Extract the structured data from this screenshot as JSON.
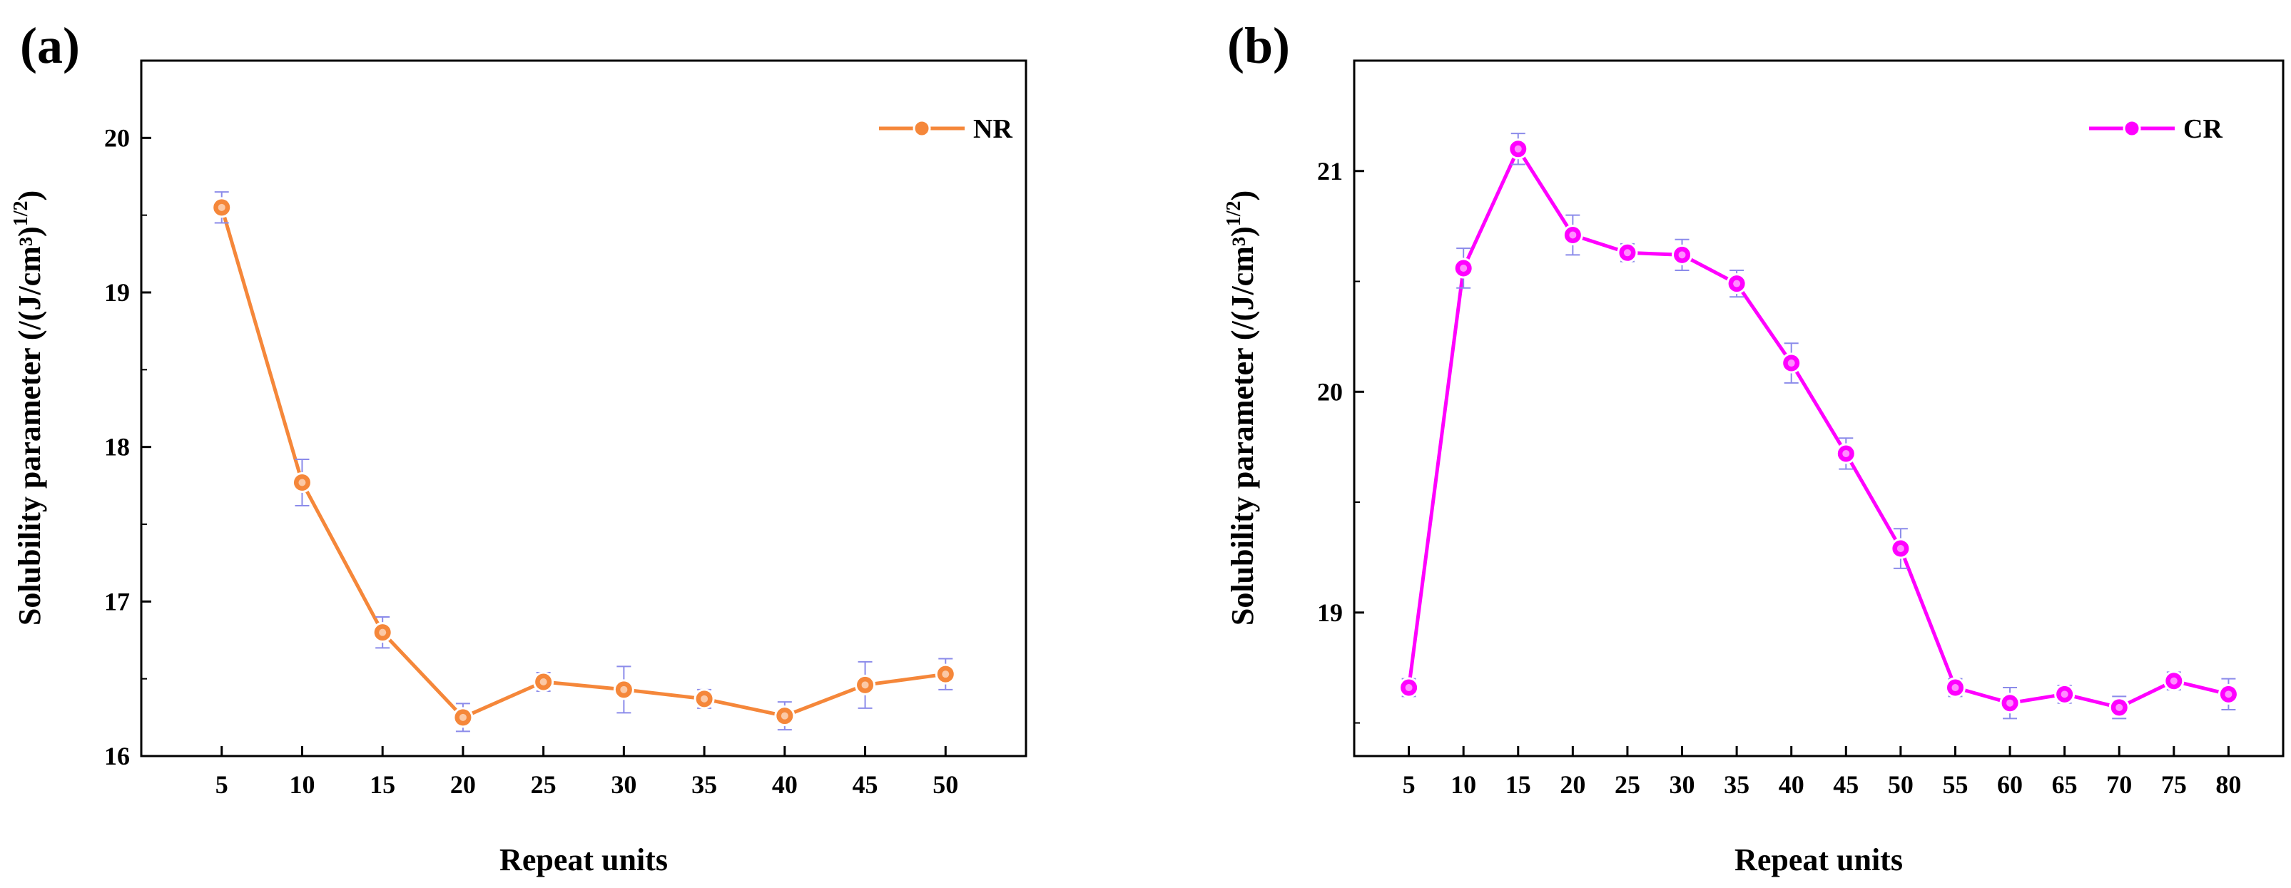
{
  "chart_data": [
    {
      "panel": "(a)",
      "type": "line",
      "xlabel": "Repeat units",
      "ylabel": "Solubility parameter (/(J/cm³)",
      "ylabel_exp": "1/2",
      "ylabel_close": ")",
      "x": [
        5,
        10,
        15,
        20,
        25,
        30,
        35,
        40,
        45,
        50
      ],
      "series": [
        {
          "name": "NR",
          "color": "#f5873a",
          "values": [
            19.55,
            17.77,
            16.8,
            16.25,
            16.48,
            16.43,
            16.37,
            16.26,
            16.46,
            16.53
          ],
          "errors": [
            0.1,
            0.15,
            0.1,
            0.09,
            0.06,
            0.15,
            0.06,
            0.09,
            0.15,
            0.1
          ]
        }
      ],
      "xlim": [
        0,
        55
      ],
      "ylim": [
        16.0,
        20.5
      ],
      "yticks": [
        16,
        17,
        18,
        19,
        20
      ],
      "xticks": [
        5,
        10,
        15,
        20,
        25,
        30,
        35,
        40,
        45,
        50
      ],
      "legend": "top-right",
      "error_bar_color": "#8b8bea"
    },
    {
      "panel": "(b)",
      "type": "line",
      "xlabel": "Repeat units",
      "ylabel": "Solubility parameter (/(J/cm³)",
      "ylabel_exp": "1/2",
      "ylabel_close": ")",
      "x": [
        5,
        10,
        15,
        20,
        25,
        30,
        35,
        40,
        45,
        50,
        55,
        60,
        65,
        70,
        75,
        80
      ],
      "series": [
        {
          "name": "CR",
          "color": "#ff00ff",
          "values": [
            18.66,
            20.56,
            21.1,
            20.71,
            20.63,
            20.62,
            20.49,
            20.13,
            19.72,
            19.29,
            18.66,
            18.59,
            18.63,
            18.57,
            18.69,
            18.63
          ],
          "errors": [
            0.04,
            0.09,
            0.07,
            0.09,
            0.04,
            0.07,
            0.06,
            0.09,
            0.07,
            0.09,
            0.04,
            0.07,
            0.04,
            0.05,
            0.04,
            0.07
          ]
        }
      ],
      "xlim": [
        0,
        85
      ],
      "ylim": [
        18.35,
        21.5
      ],
      "yticks": [
        19,
        20,
        21
      ],
      "xticks": [
        5,
        10,
        15,
        20,
        25,
        30,
        35,
        40,
        45,
        50,
        55,
        60,
        65,
        70,
        75,
        80
      ],
      "legend": "top-right",
      "error_bar_color": "#8b8bea"
    }
  ]
}
